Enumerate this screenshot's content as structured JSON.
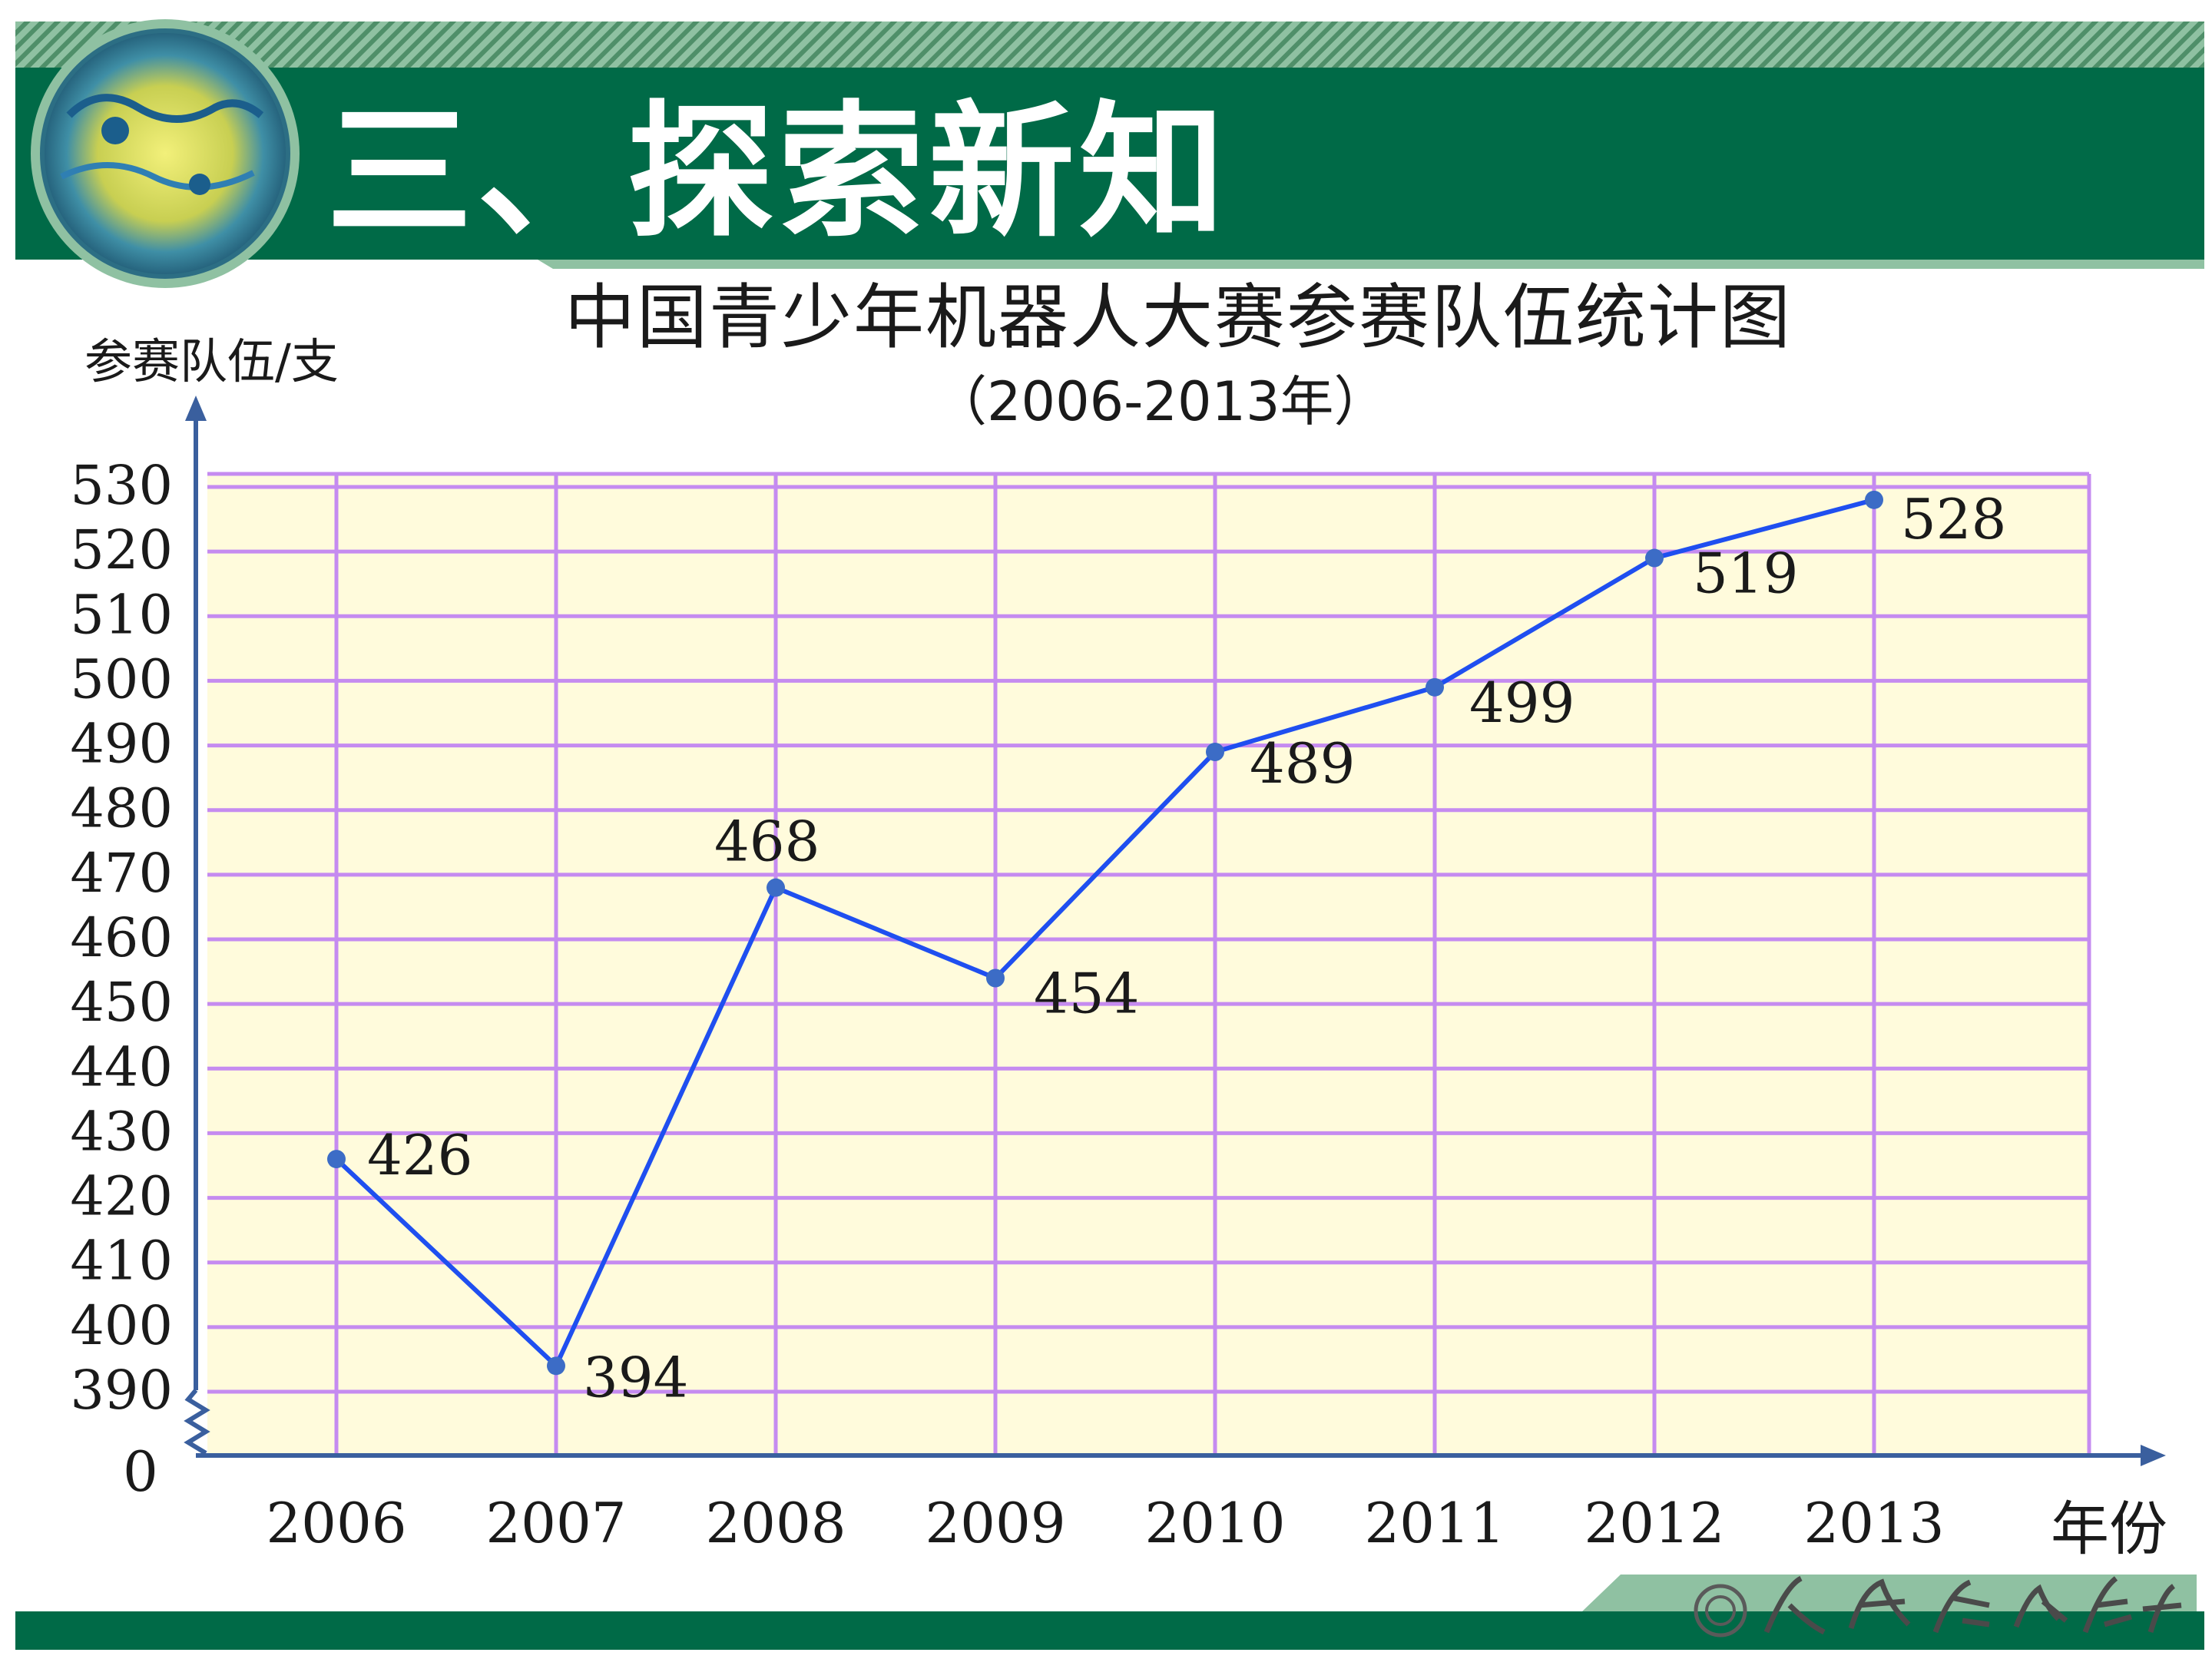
{
  "header": {
    "title": "三、探索新知"
  },
  "colors": {
    "header_green": "#006a47",
    "stripe_green": "#5f9e79",
    "plot_bg": "#fffbdc",
    "grid": "#c58bf0",
    "line": "#1f4ff0",
    "marker": "#3c6cc6",
    "axis": "#3a5f9e"
  },
  "chart_data": {
    "type": "line",
    "title": "中国青少年机器人大赛参赛队伍统计图",
    "subtitle": "（2006-2013年）",
    "ylabel": "参赛队伍/支",
    "xlabel": "年份",
    "categories": [
      "2006",
      "2007",
      "2008",
      "2009",
      "2010",
      "2011",
      "2012",
      "2013"
    ],
    "values": [
      426,
      394,
      468,
      454,
      489,
      499,
      519,
      528
    ],
    "yticks": [
      390,
      400,
      410,
      420,
      430,
      440,
      450,
      460,
      470,
      480,
      490,
      500,
      510,
      520,
      530
    ],
    "ylim": [
      390,
      530
    ],
    "y_break_label": "0",
    "grid": true,
    "legend": "none"
  },
  "footer": {
    "publisher_icon": "publisher-seal-icon"
  }
}
